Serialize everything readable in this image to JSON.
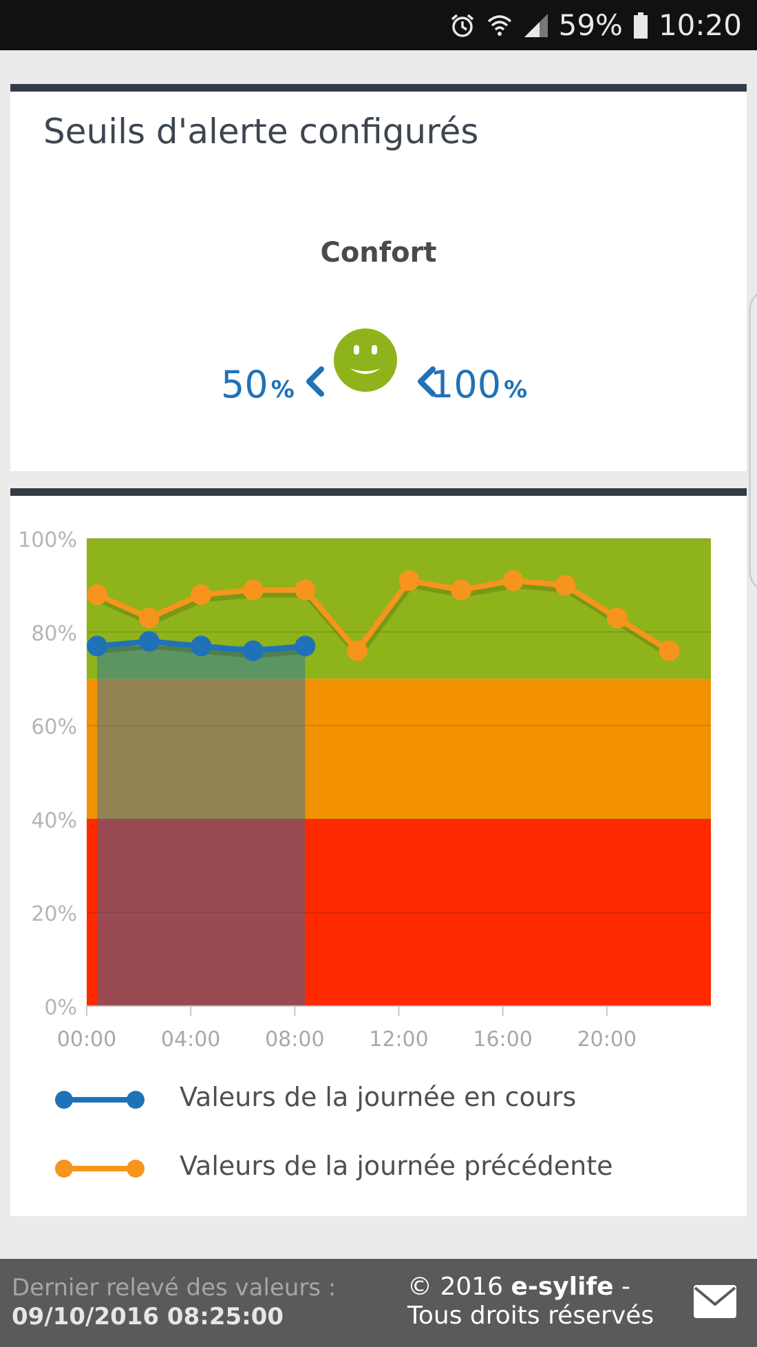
{
  "status_bar": {
    "battery": "59%",
    "time": "10:20",
    "icons": [
      "alarm-icon",
      "wifi-icon",
      "signal-icon",
      "battery-icon"
    ]
  },
  "thresholds_card": {
    "title": "Seuils d'alerte configurés",
    "label": "Confort",
    "low_value": "50",
    "low_unit": "%",
    "high_value": "100",
    "high_unit": "%",
    "icon": "smiley-icon",
    "colors": {
      "value": "#1f72b8",
      "smiley": "#8fb31a"
    }
  },
  "chart_data": {
    "type": "line",
    "ylim": [
      0,
      100
    ],
    "xlim": [
      0,
      24
    ],
    "y_ticks": [
      "0%",
      "20%",
      "40%",
      "60%",
      "80%",
      "100%"
    ],
    "y_tick_values": [
      0,
      20,
      40,
      60,
      80,
      100
    ],
    "x_ticks": [
      "00:00",
      "04:00",
      "08:00",
      "12:00",
      "16:00",
      "20:00"
    ],
    "x_tick_values": [
      0,
      4,
      8,
      12,
      16,
      20
    ],
    "bands": [
      {
        "from": 70,
        "to": 100,
        "color": "#8fb31a"
      },
      {
        "from": 40,
        "to": 70,
        "color": "#f39200"
      },
      {
        "from": 0,
        "to": 40,
        "color": "#ff2a00"
      }
    ],
    "grid": true,
    "legend_position": "bottom",
    "series": [
      {
        "name": "Valeurs de la journée en cours",
        "color": "#1f72b8",
        "x": [
          0.4,
          2.4,
          4.4,
          6.4,
          8.4
        ],
        "y": [
          77,
          78,
          77,
          76,
          77
        ],
        "shade_to": 8.4
      },
      {
        "name": "Valeurs de la journée précédente",
        "color": "#f7941d",
        "x": [
          0.4,
          2.4,
          4.4,
          6.4,
          8.4,
          10.4,
          12.4,
          14.4,
          16.4,
          18.4,
          20.4,
          22.4
        ],
        "y": [
          88,
          83,
          88,
          89,
          89,
          76,
          91,
          89,
          91,
          90,
          83,
          76
        ]
      }
    ]
  },
  "footer": {
    "last_reading_label": "Dernier relevé des valeurs :",
    "last_reading_value": "09/10/2016 08:25:00",
    "copyright_prefix": "© 2016 ",
    "copyright_brand": "e-sylife",
    "copyright_suffix": " - Tous droits réservés",
    "mail_icon": "mail-icon"
  }
}
